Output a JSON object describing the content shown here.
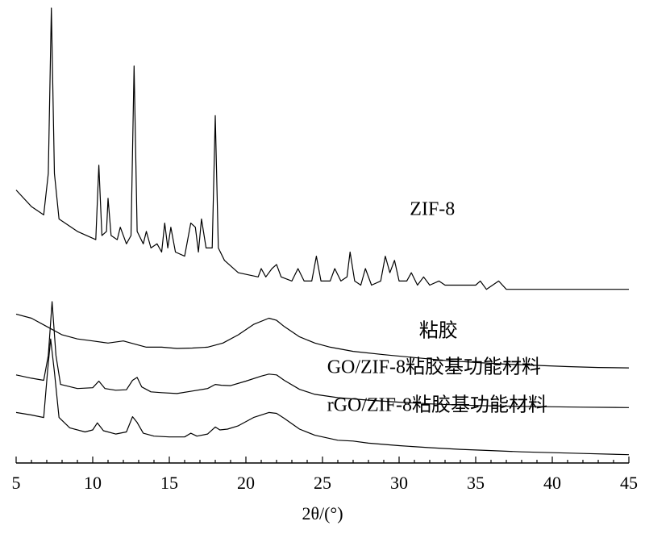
{
  "chart_data": {
    "type": "line",
    "title": "",
    "xlabel": "2θ/(°)",
    "ylabel": "",
    "xlim": [
      5,
      45
    ],
    "xticks": [
      5,
      10,
      15,
      20,
      25,
      30,
      35,
      40,
      45
    ],
    "y_axis_shown": false,
    "grid": false,
    "note_values": "relative intensity (a.u.), curves vertically offset; values estimated",
    "series": [
      {
        "name": "ZIF-8",
        "points": [
          [
            5.0,
            0.56
          ],
          [
            6.0,
            0.52
          ],
          [
            6.8,
            0.5
          ],
          [
            7.1,
            0.6
          ],
          [
            7.3,
            1.0
          ],
          [
            7.5,
            0.6
          ],
          [
            7.8,
            0.49
          ],
          [
            9.0,
            0.46
          ],
          [
            10.2,
            0.44
          ],
          [
            10.4,
            0.62
          ],
          [
            10.6,
            0.45
          ],
          [
            10.9,
            0.46
          ],
          [
            11.0,
            0.54
          ],
          [
            11.2,
            0.45
          ],
          [
            11.6,
            0.44
          ],
          [
            11.8,
            0.47
          ],
          [
            12.2,
            0.43
          ],
          [
            12.5,
            0.45
          ],
          [
            12.7,
            0.86
          ],
          [
            12.9,
            0.46
          ],
          [
            13.3,
            0.43
          ],
          [
            13.5,
            0.46
          ],
          [
            13.8,
            0.42
          ],
          [
            14.2,
            0.43
          ],
          [
            14.5,
            0.41
          ],
          [
            14.7,
            0.48
          ],
          [
            14.9,
            0.42
          ],
          [
            15.1,
            0.47
          ],
          [
            15.4,
            0.41
          ],
          [
            16.0,
            0.4
          ],
          [
            16.4,
            0.48
          ],
          [
            16.7,
            0.47
          ],
          [
            16.9,
            0.41
          ],
          [
            17.1,
            0.49
          ],
          [
            17.4,
            0.42
          ],
          [
            17.8,
            0.42
          ],
          [
            18.0,
            0.74
          ],
          [
            18.2,
            0.42
          ],
          [
            18.6,
            0.39
          ],
          [
            19.5,
            0.36
          ],
          [
            20.8,
            0.35
          ],
          [
            21.0,
            0.37
          ],
          [
            21.3,
            0.35
          ],
          [
            21.7,
            0.37
          ],
          [
            22.0,
            0.38
          ],
          [
            22.3,
            0.35
          ],
          [
            23.0,
            0.34
          ],
          [
            23.4,
            0.37
          ],
          [
            23.8,
            0.34
          ],
          [
            24.3,
            0.34
          ],
          [
            24.6,
            0.4
          ],
          [
            24.9,
            0.34
          ],
          [
            25.5,
            0.34
          ],
          [
            25.8,
            0.37
          ],
          [
            26.2,
            0.34
          ],
          [
            26.6,
            0.35
          ],
          [
            26.8,
            0.41
          ],
          [
            27.1,
            0.34
          ],
          [
            27.5,
            0.33
          ],
          [
            27.8,
            0.37
          ],
          [
            28.2,
            0.33
          ],
          [
            28.8,
            0.34
          ],
          [
            29.1,
            0.4
          ],
          [
            29.4,
            0.36
          ],
          [
            29.7,
            0.39
          ],
          [
            30.0,
            0.34
          ],
          [
            30.5,
            0.34
          ],
          [
            30.8,
            0.36
          ],
          [
            31.2,
            0.33
          ],
          [
            31.6,
            0.35
          ],
          [
            32.0,
            0.33
          ],
          [
            32.6,
            0.34
          ],
          [
            33.0,
            0.33
          ],
          [
            34.0,
            0.33
          ],
          [
            35.0,
            0.33
          ],
          [
            35.3,
            0.34
          ],
          [
            35.7,
            0.32
          ],
          [
            36.5,
            0.34
          ],
          [
            37.0,
            0.32
          ],
          [
            38.0,
            0.32
          ],
          [
            39.0,
            0.32
          ],
          [
            40.0,
            0.32
          ],
          [
            41.0,
            0.32
          ],
          [
            42.0,
            0.32
          ],
          [
            43.0,
            0.32
          ],
          [
            44.0,
            0.32
          ],
          [
            45.0,
            0.32
          ]
        ]
      },
      {
        "name": "粘胶",
        "points": [
          [
            5.0,
            0.26
          ],
          [
            6.0,
            0.25
          ],
          [
            7.0,
            0.23
          ],
          [
            8.0,
            0.21
          ],
          [
            9.0,
            0.2
          ],
          [
            10.0,
            0.195
          ],
          [
            11.0,
            0.19
          ],
          [
            12.0,
            0.195
          ],
          [
            12.5,
            0.19
          ],
          [
            13.5,
            0.18
          ],
          [
            14.5,
            0.18
          ],
          [
            15.5,
            0.177
          ],
          [
            16.5,
            0.178
          ],
          [
            17.5,
            0.18
          ],
          [
            18.5,
            0.19
          ],
          [
            19.5,
            0.21
          ],
          [
            20.5,
            0.235
          ],
          [
            21.5,
            0.25
          ],
          [
            22.0,
            0.245
          ],
          [
            22.5,
            0.23
          ],
          [
            23.5,
            0.205
          ],
          [
            24.5,
            0.19
          ],
          [
            25.5,
            0.18
          ],
          [
            27.0,
            0.17
          ],
          [
            29.0,
            0.162
          ],
          [
            31.0,
            0.155
          ],
          [
            33.0,
            0.148
          ],
          [
            35.0,
            0.143
          ],
          [
            37.0,
            0.139
          ],
          [
            39.0,
            0.136
          ],
          [
            41.0,
            0.133
          ],
          [
            43.0,
            0.131
          ],
          [
            45.0,
            0.13
          ]
        ]
      },
      {
        "name": "GO/ZIF-8粘胶基功能材料",
        "points": [
          [
            5.0,
            0.113
          ],
          [
            6.0,
            0.105
          ],
          [
            6.8,
            0.1
          ],
          [
            7.1,
            0.16
          ],
          [
            7.35,
            0.29
          ],
          [
            7.6,
            0.16
          ],
          [
            7.9,
            0.09
          ],
          [
            9.0,
            0.08
          ],
          [
            10.0,
            0.082
          ],
          [
            10.4,
            0.098
          ],
          [
            10.8,
            0.08
          ],
          [
            11.5,
            0.076
          ],
          [
            12.2,
            0.077
          ],
          [
            12.6,
            0.1
          ],
          [
            12.9,
            0.107
          ],
          [
            13.2,
            0.084
          ],
          [
            13.8,
            0.072
          ],
          [
            14.5,
            0.07
          ],
          [
            15.5,
            0.068
          ],
          [
            16.5,
            0.074
          ],
          [
            17.5,
            0.08
          ],
          [
            18.0,
            0.09
          ],
          [
            18.4,
            0.088
          ],
          [
            19.0,
            0.087
          ],
          [
            20.0,
            0.098
          ],
          [
            21.0,
            0.11
          ],
          [
            21.5,
            0.115
          ],
          [
            22.0,
            0.113
          ],
          [
            22.5,
            0.1
          ],
          [
            23.5,
            0.078
          ],
          [
            24.5,
            0.066
          ],
          [
            26.0,
            0.058
          ],
          [
            28.0,
            0.052
          ],
          [
            30.0,
            0.047
          ],
          [
            32.0,
            0.043
          ],
          [
            34.0,
            0.04
          ],
          [
            36.0,
            0.038
          ],
          [
            38.0,
            0.037
          ],
          [
            40.0,
            0.036
          ],
          [
            42.0,
            0.035
          ],
          [
            45.0,
            0.034
          ]
        ]
      },
      {
        "name": "rGO/ZIF-8粘胶基功能材料",
        "points": [
          [
            5.0,
            0.022
          ],
          [
            6.0,
            0.016
          ],
          [
            6.8,
            0.01
          ],
          [
            7.05,
            0.12
          ],
          [
            7.25,
            0.2
          ],
          [
            7.5,
            0.12
          ],
          [
            7.8,
            0.01
          ],
          [
            8.5,
            -0.015
          ],
          [
            9.5,
            -0.025
          ],
          [
            10.0,
            -0.02
          ],
          [
            10.3,
            -0.003
          ],
          [
            10.7,
            -0.022
          ],
          [
            11.5,
            -0.03
          ],
          [
            12.2,
            -0.025
          ],
          [
            12.6,
            0.012
          ],
          [
            12.9,
            -0.002
          ],
          [
            13.3,
            -0.028
          ],
          [
            14.0,
            -0.035
          ],
          [
            15.0,
            -0.037
          ],
          [
            16.0,
            -0.037
          ],
          [
            16.4,
            -0.028
          ],
          [
            16.8,
            -0.035
          ],
          [
            17.5,
            -0.03
          ],
          [
            18.0,
            -0.013
          ],
          [
            18.3,
            -0.02
          ],
          [
            18.8,
            -0.018
          ],
          [
            19.5,
            -0.01
          ],
          [
            20.5,
            0.01
          ],
          [
            21.5,
            0.022
          ],
          [
            22.0,
            0.02
          ],
          [
            22.5,
            0.008
          ],
          [
            23.5,
            -0.018
          ],
          [
            24.5,
            -0.033
          ],
          [
            26.0,
            -0.045
          ],
          [
            27.0,
            -0.047
          ],
          [
            28.0,
            -0.052
          ],
          [
            30.0,
            -0.058
          ],
          [
            32.0,
            -0.063
          ],
          [
            34.0,
            -0.067
          ],
          [
            36.0,
            -0.07
          ],
          [
            38.0,
            -0.073
          ],
          [
            40.0,
            -0.075
          ],
          [
            42.0,
            -0.077
          ],
          [
            45.0,
            -0.08
          ]
        ]
      }
    ],
    "series_labels": [
      {
        "text": "ZIF-8",
        "x": 30.7,
        "y": 0.5
      },
      {
        "text": "粘胶",
        "x": 31.3,
        "y": 0.205
      },
      {
        "text": "GO/ZIF-8粘胶基功能材料",
        "x": 25.3,
        "y": 0.117
      },
      {
        "text": "rGO/ZIF-8粘胶基功能材料",
        "x": 25.3,
        "y": 0.026
      }
    ]
  }
}
